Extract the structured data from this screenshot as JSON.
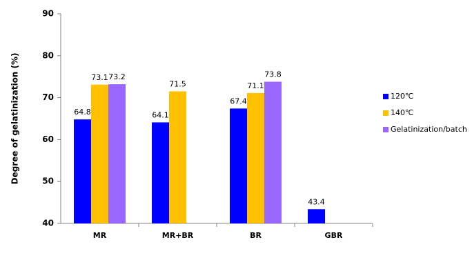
{
  "chart_data": {
    "type": "bar",
    "ylabel": "Degree of gelatinization (%)",
    "categories": [
      "MR",
      "MR+BR",
      "BR",
      "GBR"
    ],
    "series": [
      {
        "name": "120℃",
        "color": "#0000ff",
        "values": [
          64.8,
          64.1,
          67.4,
          43.4
        ]
      },
      {
        "name": "140℃",
        "color": "#ffc000",
        "values": [
          73.1,
          71.5,
          71.1,
          null
        ]
      },
      {
        "name": "Gelatinization/batch",
        "color": "#9966ff",
        "values": [
          73.2,
          null,
          73.8,
          null
        ]
      }
    ],
    "ylim": [
      40,
      90
    ],
    "yticks": [
      40,
      50,
      60,
      70,
      80,
      90
    ],
    "grid": false,
    "legend": "right"
  }
}
